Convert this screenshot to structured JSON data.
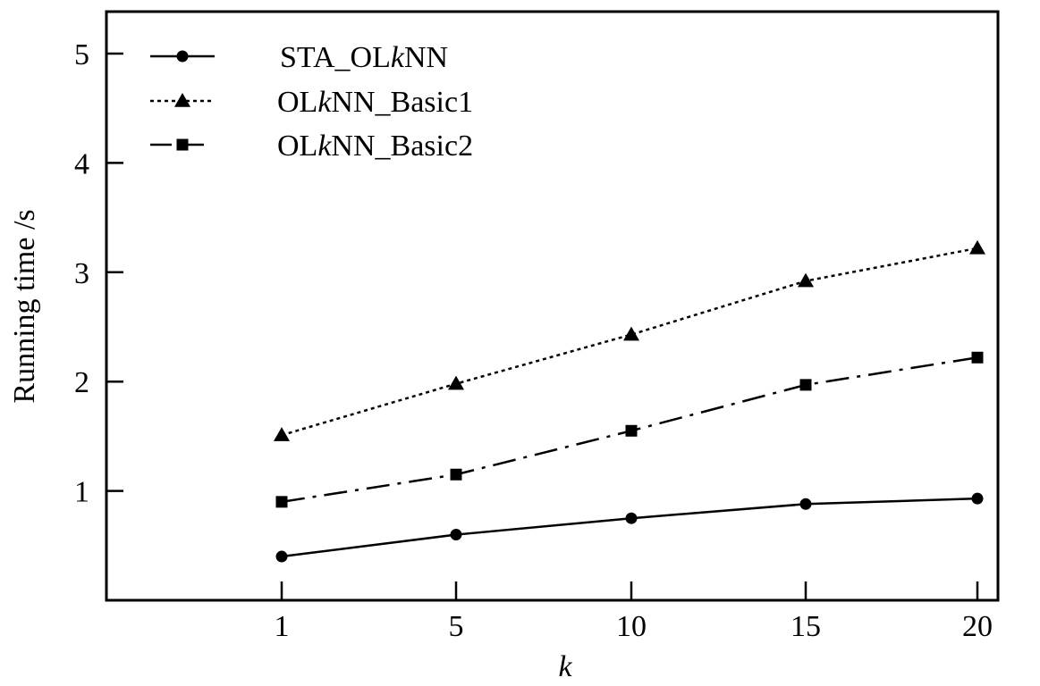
{
  "chart_data": {
    "type": "line",
    "x": [
      1,
      5,
      10,
      15,
      20
    ],
    "x_tick_labels": [
      "1",
      "5",
      "10",
      "15",
      "20"
    ],
    "y_tick_labels": [
      "1",
      "2",
      "3",
      "4",
      "5"
    ],
    "xlabel": "k",
    "ylabel": "Running time /s",
    "title": "",
    "ylim": [
      0,
      5.35
    ],
    "grid": false,
    "legend_position": "top-left",
    "series": [
      {
        "name": "STA_OLkNN",
        "label_parts": [
          "STA_OL",
          "k",
          "NN"
        ],
        "marker": "circle",
        "line_style": "solid",
        "values": [
          0.4,
          0.6,
          0.75,
          0.88,
          0.93
        ]
      },
      {
        "name": "OLkNN_Basic1",
        "label_parts": [
          "OL",
          "k",
          "NN_Basic1"
        ],
        "marker": "triangle",
        "line_style": "dotted",
        "values": [
          1.51,
          1.98,
          2.43,
          2.92,
          3.22
        ]
      },
      {
        "name": "OLkNN_Basic2",
        "label_parts": [
          "OL",
          "k",
          "NN_Basic2"
        ],
        "marker": "square",
        "line_style": "dash-dot",
        "values": [
          0.9,
          1.15,
          1.55,
          1.97,
          2.22
        ]
      }
    ],
    "colors": {
      "line": "#000000",
      "background": "#ffffff"
    }
  }
}
